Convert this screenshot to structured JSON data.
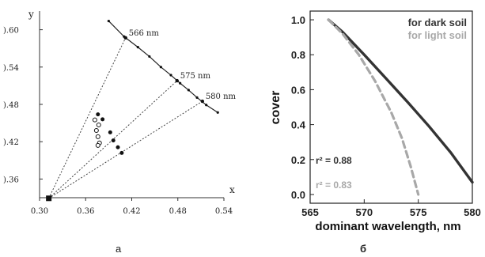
{
  "chart_data": [
    {
      "type": "scatter",
      "caption": "а",
      "xlabel": "x",
      "ylabel": "y",
      "xlim": [
        0.3,
        0.54
      ],
      "ylim": [
        0.33,
        0.63
      ],
      "xticks": [
        "0.30",
        "0.36",
        "0.42",
        "0.48",
        "0.54"
      ],
      "yticks": [
        {
          "label": ").60",
          "value": 0.6
        },
        {
          "label": ").54",
          "value": 0.54
        },
        {
          "label": ").48",
          "value": 0.48
        },
        {
          "label": ").42",
          "value": 0.42
        },
        {
          "label": ").36",
          "value": 0.36
        }
      ],
      "white_point": {
        "x": 0.312,
        "y": 0.329
      },
      "locus": [
        [
          0.39,
          0.614
        ],
        [
          0.41,
          0.589
        ],
        [
          0.428,
          0.572
        ],
        [
          0.443,
          0.557
        ],
        [
          0.458,
          0.54
        ],
        [
          0.471,
          0.527
        ],
        [
          0.483,
          0.514
        ],
        [
          0.494,
          0.503
        ],
        [
          0.505,
          0.491
        ],
        [
          0.517,
          0.479
        ],
        [
          0.532,
          0.467
        ]
      ],
      "wavelength_points": [
        {
          "label": "566 nm",
          "x": 0.412,
          "y": 0.587
        },
        {
          "label": "575 nm",
          "x": 0.479,
          "y": 0.518
        },
        {
          "label": "580 nm",
          "x": 0.512,
          "y": 0.485
        }
      ],
      "series": [
        {
          "marker": "filled",
          "points": [
            [
              0.376,
              0.464
            ],
            [
              0.382,
              0.456
            ],
            [
              0.392,
              0.435
            ],
            [
              0.396,
              0.422
            ],
            [
              0.402,
              0.411
            ],
            [
              0.407,
              0.402
            ]
          ]
        },
        {
          "marker": "open",
          "points": [
            [
              0.372,
              0.455
            ],
            [
              0.377,
              0.447
            ],
            [
              0.374,
              0.438
            ],
            [
              0.376,
              0.428
            ],
            [
              0.378,
              0.418
            ],
            [
              0.376,
              0.414
            ]
          ]
        }
      ]
    },
    {
      "type": "line",
      "caption": "б",
      "xlabel": "dominant wavelength, nm",
      "ylabel": "cover",
      "xlim": [
        565,
        580
      ],
      "ylim": [
        -0.05,
        1.05
      ],
      "xticks": [
        565,
        570,
        575,
        580
      ],
      "yticks": [
        "0.0",
        "0.2",
        "0.4",
        "0.6",
        "0.8",
        "1.0"
      ],
      "series": [
        {
          "name": "for dark soil",
          "color": "#333333",
          "style": "solid",
          "points": [
            [
              566.7,
              1.0
            ],
            [
              568,
              0.93
            ],
            [
              570,
              0.8
            ],
            [
              572,
              0.665
            ],
            [
              574,
              0.53
            ],
            [
              576,
              0.39
            ],
            [
              578,
              0.24
            ],
            [
              580,
              0.07
            ]
          ]
        },
        {
          "name": "for light soil",
          "color": "#a8a8a8",
          "style": "dashed",
          "points": [
            [
              566.7,
              1.0
            ],
            [
              568,
              0.92
            ],
            [
              569.5,
              0.8
            ],
            [
              571,
              0.65
            ],
            [
              572.5,
              0.47
            ],
            [
              573.5,
              0.32
            ],
            [
              574.3,
              0.16
            ],
            [
              575,
              0.0
            ]
          ]
        }
      ],
      "annotations": [
        {
          "text": "r² = 0.88",
          "color": "#333333"
        },
        {
          "text": "r² = 0.83",
          "color": "#a8a8a8"
        }
      ],
      "legend": "top-right"
    }
  ]
}
